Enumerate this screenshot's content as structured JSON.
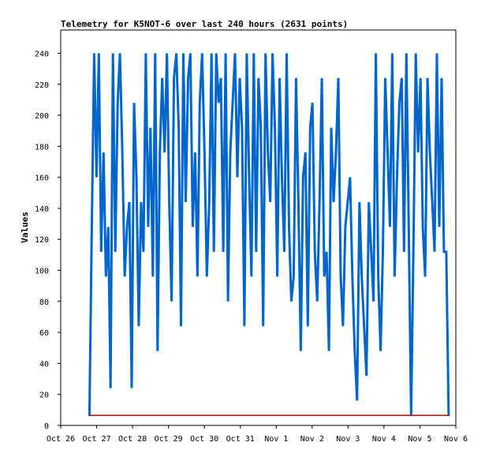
{
  "chart_data": {
    "type": "line",
    "title": "Telemetry for K5NOT-6 over last 240 hours (2631 points)",
    "xlabel": "",
    "ylabel": "Values",
    "x_range": [
      "Oct 26",
      "Nov 6"
    ],
    "ylim": [
      0,
      255
    ],
    "grid": false,
    "legend": "none",
    "x_tick_labels": [
      "Oct 26",
      "Oct 27",
      "Oct 28",
      "Oct 29",
      "Oct 30",
      "Oct 31",
      "Nov 1",
      "Nov 2",
      "Nov 3",
      "Nov 4",
      "Nov 5",
      "Nov 6"
    ],
    "y_ticks": [
      0,
      20,
      40,
      60,
      80,
      100,
      120,
      140,
      160,
      180,
      200,
      220,
      240
    ],
    "data_start_day": 0.8,
    "data_end_day": 10.8,
    "series": [
      {
        "color": "#0066cc",
        "values": [
          6,
          128,
          240,
          160,
          240,
          112,
          176,
          96,
          128,
          24,
          240,
          112,
          208,
          240,
          176,
          96,
          128,
          144,
          24,
          208,
          160,
          64,
          144,
          112,
          240,
          128,
          192,
          96,
          240,
          48,
          176,
          224,
          176,
          240,
          144,
          80,
          224,
          240,
          192,
          64,
          240,
          144,
          224,
          240,
          128,
          176,
          96,
          208,
          240,
          176,
          96,
          144,
          240,
          112,
          240,
          208,
          224,
          112,
          240,
          80,
          176,
          208,
          240,
          160,
          224,
          192,
          64,
          240,
          160,
          96,
          240,
          112,
          224,
          192,
          64,
          240,
          176,
          144,
          240,
          192,
          96,
          224,
          160,
          112,
          240,
          128,
          80,
          96,
          224,
          144,
          48,
          160,
          176,
          64,
          192,
          208,
          112,
          80,
          144,
          224,
          96,
          112,
          48,
          192,
          144,
          176,
          224,
          96,
          64,
          128,
          144,
          160,
          96,
          48,
          16,
          144,
          96,
          64,
          32,
          144,
          112,
          80,
          240,
          96,
          48,
          112,
          224,
          176,
          128,
          240,
          96,
          160,
          208,
          224,
          112,
          240,
          128,
          6,
          112,
          240,
          176,
          224,
          128,
          96,
          224,
          176,
          144,
          112,
          240,
          128,
          224,
          112,
          112,
          6
        ]
      },
      {
        "color": "#cc0000",
        "values": [
          6.5,
          6.5
        ]
      }
    ]
  }
}
